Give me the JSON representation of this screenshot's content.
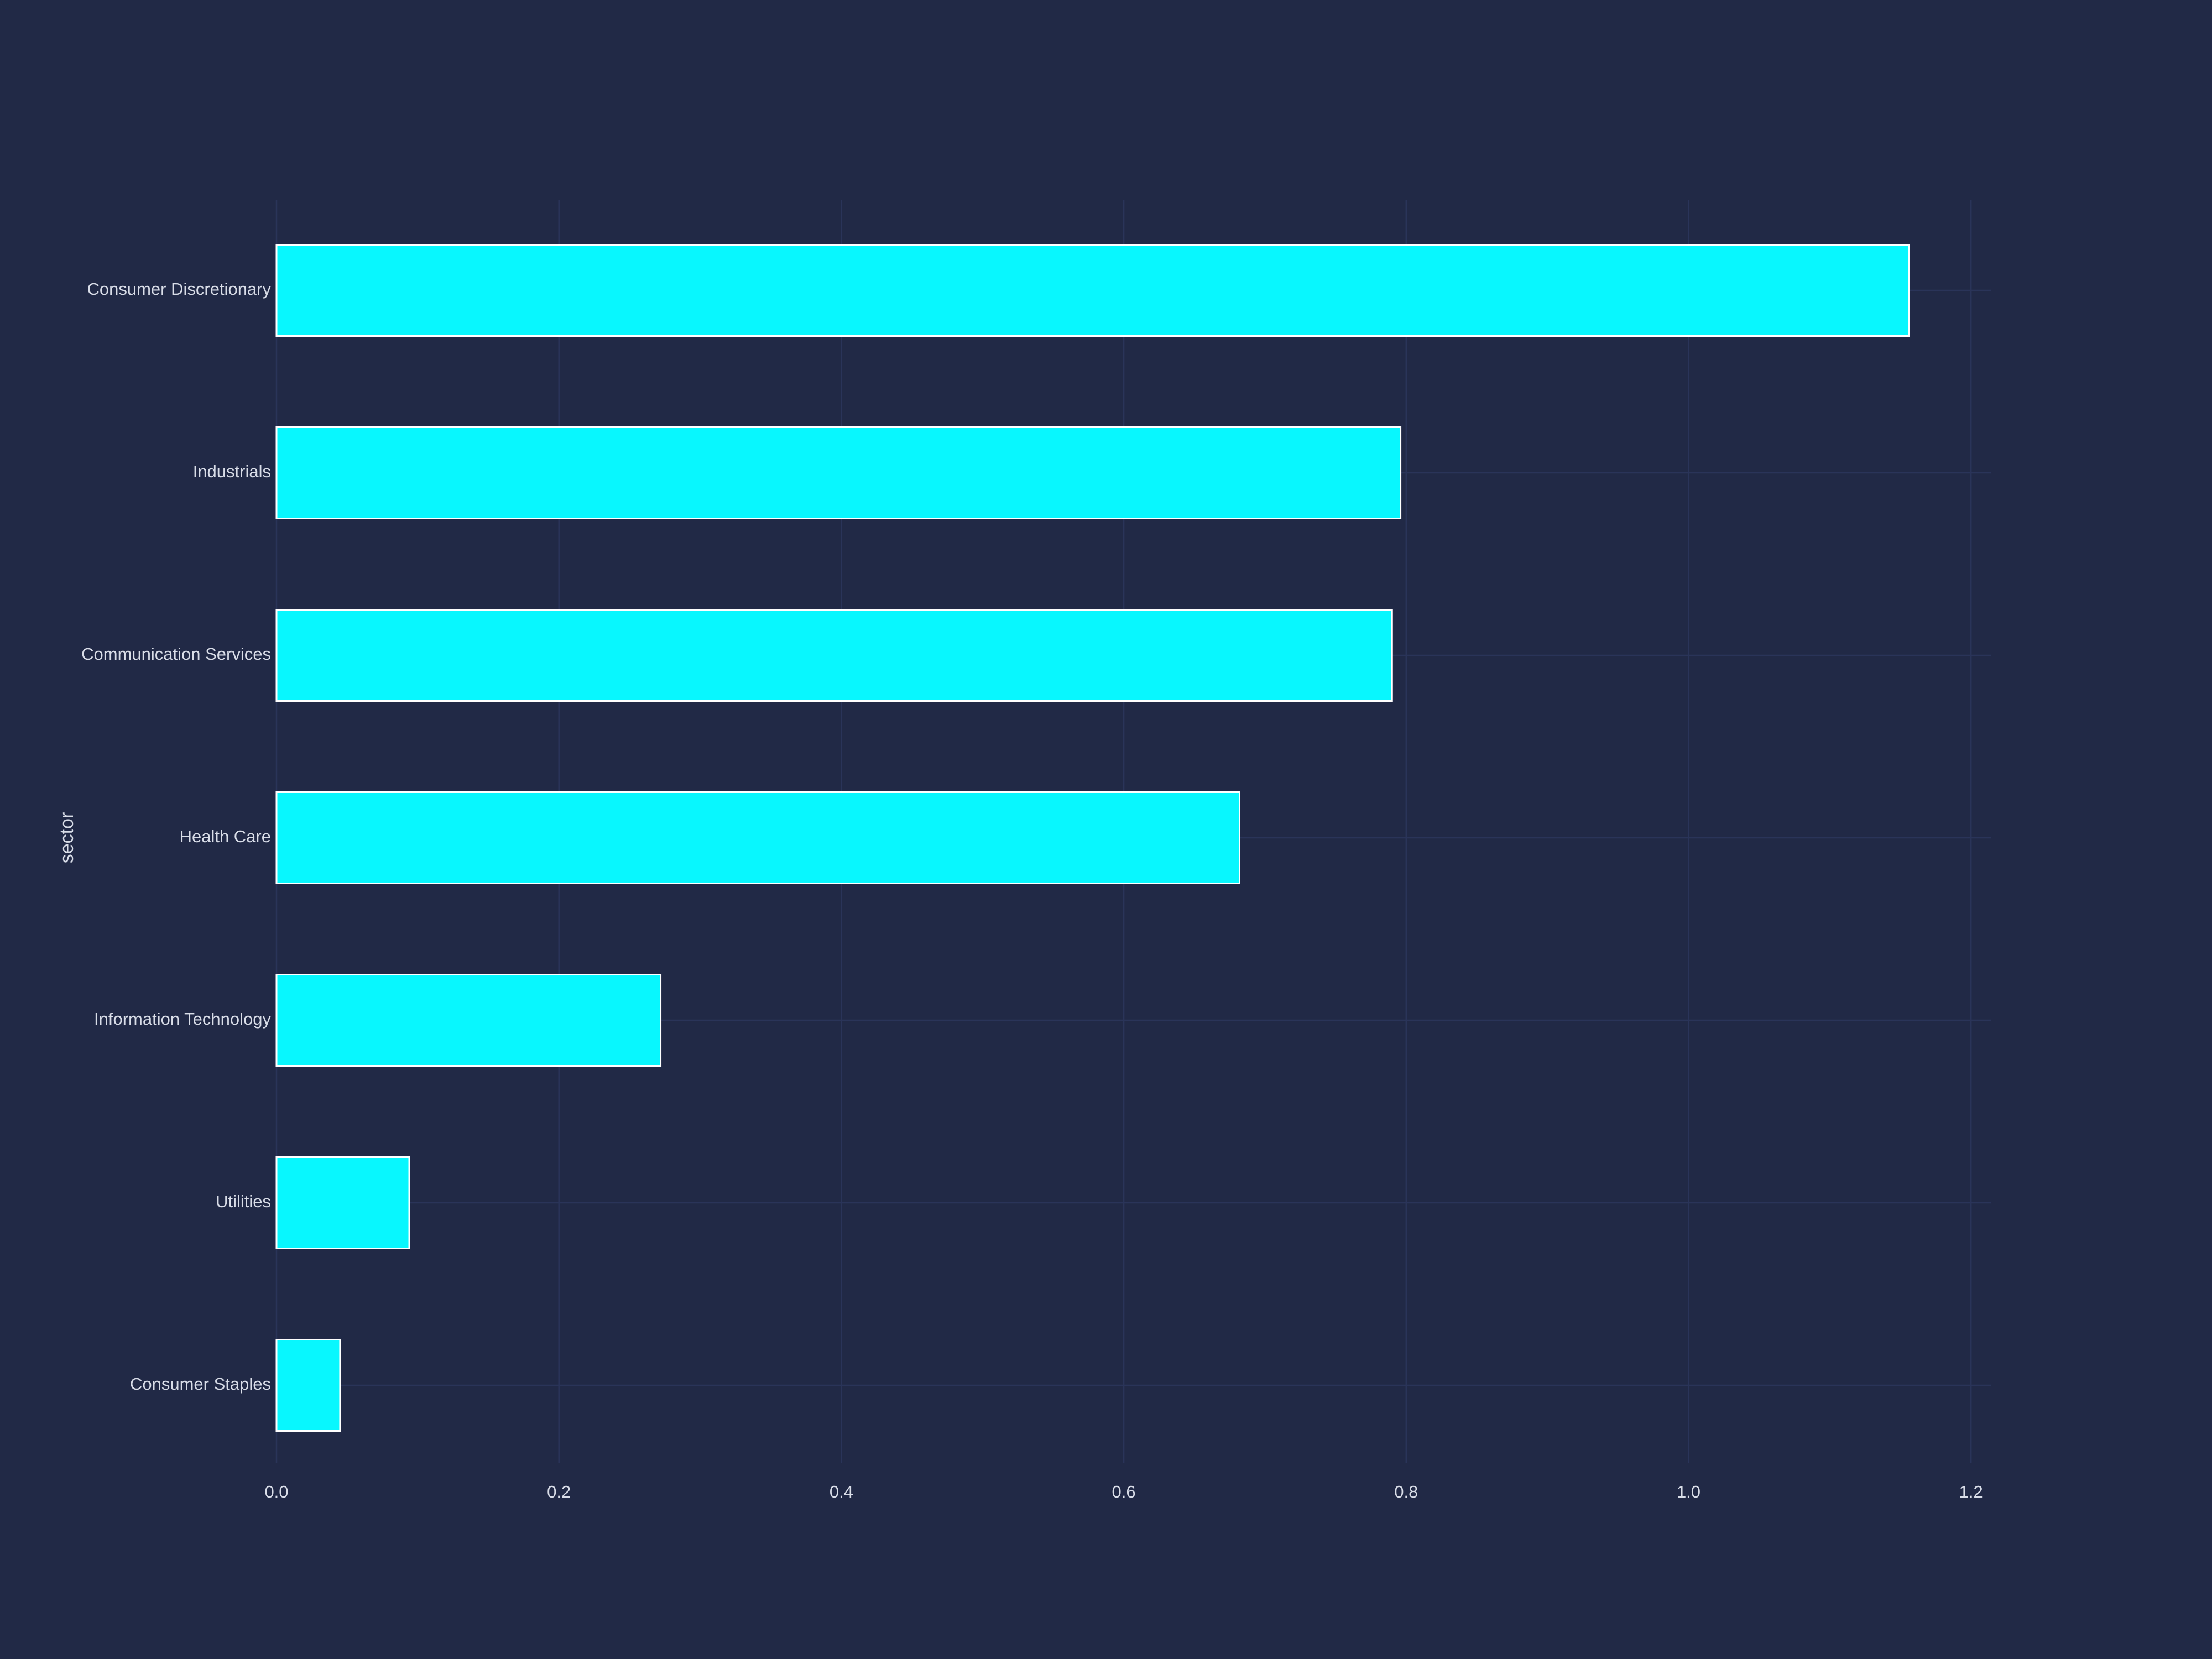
{
  "colors": {
    "background": "#212946",
    "grid": "#2a3459",
    "bar_fill": "#08f7fe",
    "bar_edge": "#ffffff",
    "text": "#d9dde8"
  },
  "chart_data": {
    "type": "bar",
    "orientation": "horizontal",
    "title": "",
    "xlabel": "",
    "ylabel": "sector",
    "categories": [
      "Consumer Discretionary",
      "Industrials",
      "Communication Services",
      "Health Care",
      "Information Technology",
      "Utilities",
      "Consumer Staples"
    ],
    "values": [
      1.156,
      0.796,
      0.79,
      0.682,
      0.272,
      0.094,
      0.045
    ],
    "xlim": [
      0.0,
      1.2
    ],
    "xticks": [
      "0.0",
      "0.2",
      "0.4",
      "0.6",
      "0.8",
      "1.0",
      "1.2"
    ],
    "grid": true,
    "legend": "none"
  }
}
